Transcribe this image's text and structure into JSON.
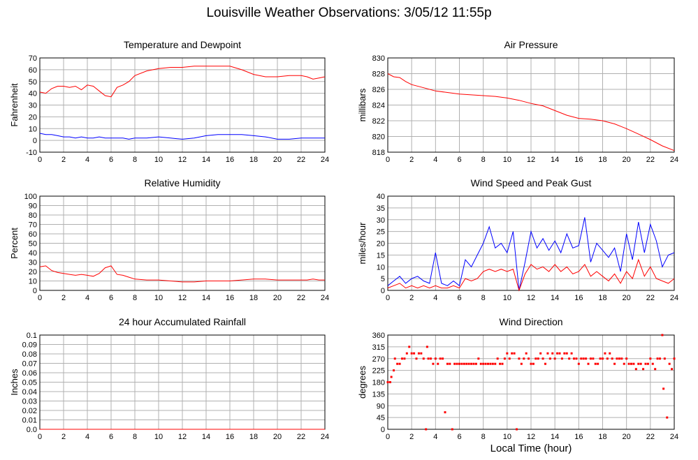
{
  "page": {
    "title": "Louisville Weather Observations: 3/05/12 11:55p",
    "xlabel": "Local Time (hour)"
  },
  "colors": {
    "red": "#ff0000",
    "blue": "#0000ff",
    "grid": "#b0b0b0",
    "frame": "#000000"
  },
  "chart_data": [
    {
      "id": "temp",
      "type": "line",
      "title": "Temperature and Dewpoint",
      "ylabel": "Fahrenheit",
      "xlabel": "",
      "xlim": [
        0,
        24
      ],
      "ylim": [
        -10,
        70
      ],
      "xticks": [
        0,
        2,
        4,
        6,
        8,
        10,
        12,
        14,
        16,
        18,
        20,
        22,
        24
      ],
      "yticks": [
        -10,
        0,
        10,
        20,
        30,
        40,
        50,
        60,
        70
      ],
      "ytick_labels": [
        "-10",
        "0",
        "10",
        "20",
        "30",
        "40",
        "50",
        "60",
        "70"
      ],
      "grid": true,
      "series": [
        {
          "color": "#ff0000",
          "x": [
            0,
            0.5,
            1,
            1.5,
            2,
            2.5,
            3,
            3.5,
            4,
            4.5,
            5,
            5.5,
            6,
            6.5,
            7,
            7.5,
            8,
            9,
            10,
            11,
            12,
            13,
            14,
            15,
            16,
            17,
            18,
            19,
            20,
            21,
            22,
            22.5,
            23,
            23.5,
            24
          ],
          "y": [
            41,
            40,
            44,
            46,
            46,
            45,
            46,
            43,
            47,
            46,
            42,
            38,
            37,
            45,
            47,
            50,
            55,
            59,
            61,
            62,
            62,
            63,
            63,
            63,
            63,
            60,
            56,
            54,
            54,
            55,
            55,
            54,
            52,
            53,
            54
          ]
        },
        {
          "color": "#0000ff",
          "x": [
            0,
            0.5,
            1,
            1.5,
            2,
            2.5,
            3,
            3.5,
            4,
            4.5,
            5,
            5.5,
            6,
            6.5,
            7,
            7.5,
            8,
            9,
            10,
            11,
            12,
            13,
            14,
            15,
            16,
            17,
            18,
            19,
            20,
            21,
            22,
            22.5,
            23,
            23.5,
            24
          ],
          "y": [
            6,
            5,
            5,
            4,
            3,
            3,
            2,
            3,
            2,
            2,
            3,
            2,
            2,
            2,
            2,
            1,
            2,
            2,
            3,
            2,
            1,
            2,
            4,
            5,
            5,
            5,
            4,
            3,
            1,
            1,
            2,
            2,
            2,
            2,
            2
          ]
        }
      ]
    },
    {
      "id": "pressure",
      "type": "line",
      "title": "Air Pressure",
      "ylabel": "millibars",
      "xlabel": "",
      "xlim": [
        0,
        24
      ],
      "ylim": [
        818,
        830
      ],
      "xticks": [
        0,
        2,
        4,
        6,
        8,
        10,
        12,
        14,
        16,
        18,
        20,
        22,
        24
      ],
      "yticks": [
        818,
        820,
        822,
        824,
        826,
        828,
        830
      ],
      "ytick_labels": [
        "818",
        "820",
        "822",
        "824",
        "826",
        "828",
        "830"
      ],
      "grid": true,
      "series": [
        {
          "color": "#ff0000",
          "x": [
            0,
            0.5,
            1,
            1.5,
            2,
            3,
            4,
            5,
            6,
            7,
            8,
            9,
            10,
            11,
            12,
            13,
            14,
            15,
            16,
            17,
            18,
            19,
            20,
            21,
            22,
            23,
            24
          ],
          "y": [
            828,
            827.6,
            827.5,
            827,
            826.6,
            826.2,
            825.8,
            825.6,
            825.4,
            825.3,
            825.2,
            825.1,
            824.9,
            824.6,
            824.2,
            823.9,
            823.3,
            822.7,
            822.3,
            822.2,
            822.0,
            821.6,
            821.0,
            820.3,
            819.6,
            818.8,
            818.2
          ]
        }
      ]
    },
    {
      "id": "humidity",
      "type": "line",
      "title": "Relative Humidity",
      "ylabel": "Percent",
      "xlabel": "",
      "xlim": [
        0,
        24
      ],
      "ylim": [
        0,
        100
      ],
      "xticks": [
        0,
        2,
        4,
        6,
        8,
        10,
        12,
        14,
        16,
        18,
        20,
        22,
        24
      ],
      "yticks": [
        0,
        10,
        20,
        30,
        40,
        50,
        60,
        70,
        80,
        90,
        100
      ],
      "ytick_labels": [
        "0",
        "10",
        "20",
        "30",
        "40",
        "50",
        "60",
        "70",
        "80",
        "90",
        "100"
      ],
      "grid": true,
      "series": [
        {
          "color": "#ff0000",
          "x": [
            0,
            0.5,
            1,
            1.5,
            2,
            2.5,
            3,
            3.5,
            4,
            4.5,
            5,
            5.5,
            6,
            6.5,
            7,
            7.5,
            8,
            9,
            10,
            11,
            12,
            13,
            14,
            15,
            16,
            17,
            18,
            19,
            20,
            21,
            22,
            22.5,
            23,
            23.5,
            24
          ],
          "y": [
            25,
            26,
            21,
            19,
            18,
            17,
            16,
            17,
            16,
            15,
            18,
            24,
            26,
            17,
            16,
            14,
            12,
            11,
            11,
            10,
            9,
            9,
            10,
            10,
            10,
            11,
            12,
            12,
            11,
            11,
            11,
            11,
            12,
            11,
            11
          ]
        }
      ]
    },
    {
      "id": "wind",
      "type": "line",
      "title": "Wind Speed and Peak Gust",
      "ylabel": "miles/hour",
      "xlabel": "",
      "xlim": [
        0,
        24
      ],
      "ylim": [
        0,
        40
      ],
      "xticks": [
        0,
        2,
        4,
        6,
        8,
        10,
        12,
        14,
        16,
        18,
        20,
        22,
        24
      ],
      "yticks": [
        0,
        5,
        10,
        15,
        20,
        25,
        30,
        35,
        40
      ],
      "ytick_labels": [
        "0",
        "5",
        "10",
        "15",
        "20",
        "25",
        "30",
        "35",
        "40"
      ],
      "grid": true,
      "series": [
        {
          "color": "#0000ff",
          "x": [
            0,
            0.5,
            1,
            1.5,
            2,
            2.5,
            3,
            3.5,
            4,
            4.5,
            5,
            5.5,
            6,
            6.5,
            7,
            7.5,
            8,
            8.5,
            9,
            9.5,
            10,
            10.5,
            11,
            11.5,
            12,
            12.5,
            13,
            13.5,
            14,
            14.5,
            15,
            15.5,
            16,
            16.5,
            17,
            17.5,
            18,
            18.5,
            19,
            19.5,
            20,
            20.5,
            21,
            21.5,
            22,
            22.5,
            23,
            23.5,
            24
          ],
          "y": [
            2,
            4,
            6,
            3,
            5,
            6,
            4,
            3,
            16,
            3,
            2,
            4,
            2,
            13,
            10,
            15,
            20,
            27,
            18,
            20,
            16,
            25,
            0,
            12,
            25,
            18,
            22,
            17,
            21,
            16,
            24,
            18,
            19,
            31,
            12,
            20,
            17,
            14,
            18,
            8,
            24,
            13,
            29,
            16,
            28,
            21,
            10,
            15,
            16
          ]
        },
        {
          "color": "#ff0000",
          "x": [
            0,
            0.5,
            1,
            1.5,
            2,
            2.5,
            3,
            3.5,
            4,
            4.5,
            5,
            5.5,
            6,
            6.5,
            7,
            7.5,
            8,
            8.5,
            9,
            9.5,
            10,
            10.5,
            11,
            11.5,
            12,
            12.5,
            13,
            13.5,
            14,
            14.5,
            15,
            15.5,
            16,
            16.5,
            17,
            17.5,
            18,
            18.5,
            19,
            19.5,
            20,
            20.5,
            21,
            21.5,
            22,
            22.5,
            23,
            23.5,
            24
          ],
          "y": [
            1,
            2,
            3,
            1,
            2,
            1,
            2,
            1,
            2,
            1,
            1,
            2,
            1,
            5,
            4,
            5,
            8,
            9,
            8,
            9,
            8,
            9,
            0,
            7,
            11,
            9,
            10,
            8,
            11,
            8,
            10,
            7,
            8,
            11,
            6,
            8,
            6,
            4,
            7,
            3,
            8,
            5,
            13,
            6,
            10,
            5,
            4,
            3,
            5
          ]
        }
      ]
    },
    {
      "id": "rain",
      "type": "line",
      "title": "24 hour Accumulated Rainfall",
      "ylabel": "Inches",
      "xlabel": "",
      "xlim": [
        0,
        24
      ],
      "ylim": [
        0,
        0.1
      ],
      "xticks": [
        0,
        2,
        4,
        6,
        8,
        10,
        12,
        14,
        16,
        18,
        20,
        22,
        24
      ],
      "yticks": [
        0,
        0.01,
        0.02,
        0.03,
        0.04,
        0.05,
        0.06,
        0.07,
        0.08,
        0.09,
        0.1
      ],
      "ytick_labels": [
        "0.0",
        "0.01",
        "0.02",
        "0.03",
        "0.04",
        "0.05",
        "0.06",
        "0.07",
        "0.08",
        "0.09",
        "0.1"
      ],
      "grid": true,
      "series": [
        {
          "color": "#ff0000",
          "x": [
            0,
            24
          ],
          "y": [
            0,
            0
          ]
        }
      ]
    },
    {
      "id": "direction",
      "type": "scatter",
      "title": "Wind Direction",
      "ylabel": "degrees",
      "xlabel": "Local Time (hour)",
      "xlim": [
        0,
        24
      ],
      "ylim": [
        0,
        360
      ],
      "xticks": [
        0,
        2,
        4,
        6,
        8,
        10,
        12,
        14,
        16,
        18,
        20,
        22,
        24
      ],
      "yticks": [
        0,
        45,
        90,
        135,
        180,
        225,
        270,
        315,
        360
      ],
      "ytick_labels": [
        "0",
        "45",
        "90",
        "135",
        "180",
        "225",
        "270",
        "315",
        "360"
      ],
      "grid": true,
      "series": [
        {
          "color": "#ff0000",
          "x": [
            0,
            0.2,
            0.3,
            0.5,
            0.6,
            0.8,
            1,
            1.2,
            1.4,
            1.6,
            1.8,
            2,
            2.2,
            2.4,
            2.6,
            2.8,
            3,
            3.2,
            3.3,
            3.4,
            3.6,
            3.8,
            4,
            4.2,
            4.4,
            4.6,
            4.8,
            5,
            5.2,
            5.4,
            5.6,
            5.8,
            6,
            6.2,
            6.4,
            6.6,
            6.8,
            7,
            7.2,
            7.4,
            7.6,
            7.8,
            8,
            8.2,
            8.4,
            8.6,
            8.8,
            9,
            9.2,
            9.4,
            9.6,
            9.8,
            10,
            10.2,
            10.4,
            10.6,
            10.8,
            11,
            11.2,
            11.4,
            11.6,
            11.8,
            12,
            12.2,
            12.4,
            12.6,
            12.8,
            13,
            13.2,
            13.4,
            13.6,
            13.8,
            14,
            14.2,
            14.4,
            14.6,
            14.8,
            15,
            15.2,
            15.4,
            15.6,
            15.8,
            16,
            16.2,
            16.4,
            16.6,
            16.8,
            17,
            17.2,
            17.4,
            17.6,
            17.8,
            18,
            18.2,
            18.4,
            18.6,
            18.8,
            19,
            19.2,
            19.4,
            19.6,
            19.8,
            20,
            20.2,
            20.4,
            20.6,
            20.8,
            21,
            21.2,
            21.4,
            21.6,
            21.8,
            22,
            22.2,
            22.4,
            22.6,
            22.8,
            23,
            23.1,
            23.2,
            23.4,
            23.6,
            23.8,
            24
          ],
          "y": [
            180,
            180,
            200,
            225,
            270,
            250,
            250,
            270,
            270,
            290,
            315,
            290,
            290,
            270,
            290,
            290,
            270,
            0,
            315,
            270,
            270,
            250,
            270,
            250,
            270,
            270,
            65,
            250,
            250,
            0,
            250,
            250,
            250,
            250,
            250,
            250,
            250,
            250,
            250,
            250,
            270,
            250,
            250,
            250,
            250,
            250,
            250,
            250,
            270,
            250,
            250,
            270,
            290,
            270,
            290,
            290,
            0,
            270,
            250,
            270,
            290,
            270,
            250,
            250,
            270,
            270,
            290,
            270,
            250,
            290,
            270,
            290,
            270,
            290,
            290,
            270,
            290,
            290,
            270,
            290,
            270,
            270,
            250,
            270,
            270,
            270,
            250,
            270,
            270,
            250,
            250,
            270,
            270,
            290,
            270,
            290,
            270,
            250,
            270,
            270,
            270,
            250,
            270,
            250,
            250,
            250,
            230,
            250,
            250,
            230,
            250,
            250,
            270,
            250,
            230,
            270,
            270,
            360,
            155,
            270,
            45,
            250,
            230,
            270
          ]
        }
      ]
    }
  ]
}
